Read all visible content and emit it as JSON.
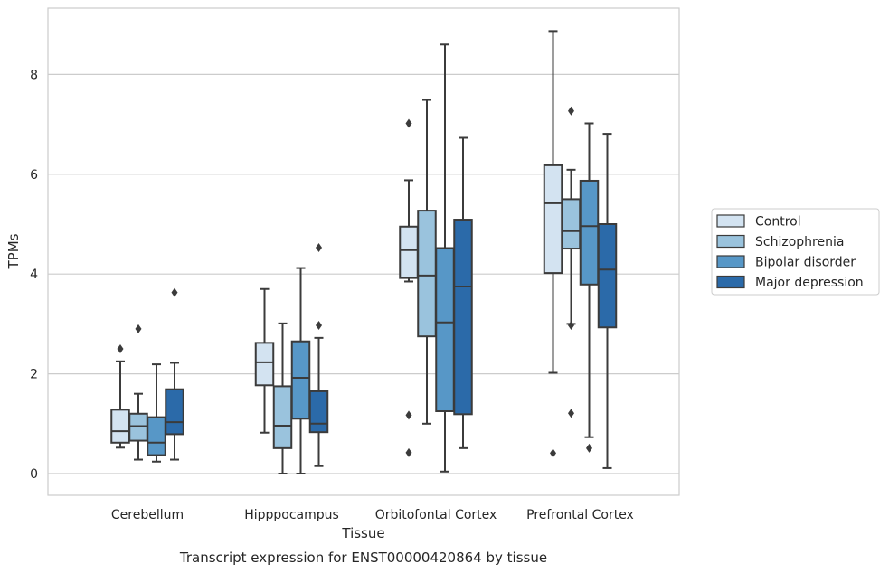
{
  "caption": "Transcript expression for ENST00000420864 by tissue",
  "chart_data": {
    "type": "box",
    "xlabel": "Tissue",
    "ylabel": "TPMs",
    "ylim": [
      -0.4,
      9.3
    ],
    "yticks": [
      0,
      2,
      4,
      6,
      8
    ],
    "grid": "horizontal",
    "legend_position": "right",
    "categories": [
      "Cerebellum",
      "Hipppocampus",
      "Orbitofontal Cortex",
      "Prefrontal Cortex"
    ],
    "series": [
      {
        "name": "Control",
        "color": "#d3e3f1",
        "boxes": [
          {
            "whislo": 0.52,
            "q1": 0.62,
            "med": 0.85,
            "q3": 1.28,
            "whishi": 2.25,
            "fliers": [
              2.5
            ]
          },
          {
            "whislo": 0.82,
            "q1": 1.77,
            "med": 2.23,
            "q3": 2.62,
            "whishi": 3.7,
            "fliers": []
          },
          {
            "whislo": 3.85,
            "q1": 3.92,
            "med": 4.48,
            "q3": 4.95,
            "whishi": 5.88,
            "fliers": [
              7.02,
              1.17,
              0.42
            ]
          },
          {
            "whislo": 2.02,
            "q1": 4.02,
            "med": 5.42,
            "q3": 6.18,
            "whishi": 8.87,
            "fliers": [
              0.41
            ]
          }
        ]
      },
      {
        "name": "Schizophrenia",
        "color": "#9ac3dd",
        "boxes": [
          {
            "whislo": 0.28,
            "q1": 0.66,
            "med": 0.95,
            "q3": 1.2,
            "whishi": 1.6,
            "fliers": [
              2.9
            ]
          },
          {
            "whislo": 0.0,
            "q1": 0.51,
            "med": 0.96,
            "q3": 1.75,
            "whishi": 3.01,
            "fliers": []
          },
          {
            "whislo": 1.0,
            "q1": 2.75,
            "med": 3.97,
            "q3": 5.27,
            "whishi": 7.49,
            "fliers": []
          },
          {
            "whislo": 3.0,
            "q1": 4.51,
            "med": 4.86,
            "q3": 5.5,
            "whishi": 6.09,
            "fliers": [
              7.27,
              2.97,
              1.21
            ]
          }
        ]
      },
      {
        "name": "Bipolar disorder",
        "color": "#5797c7",
        "boxes": [
          {
            "whislo": 0.24,
            "q1": 0.37,
            "med": 0.62,
            "q3": 1.13,
            "whishi": 2.19,
            "fliers": []
          },
          {
            "whislo": 0.0,
            "q1": 1.1,
            "med": 1.92,
            "q3": 2.65,
            "whishi": 4.12,
            "fliers": []
          },
          {
            "whislo": 0.04,
            "q1": 1.25,
            "med": 3.03,
            "q3": 4.52,
            "whishi": 8.6,
            "fliers": []
          },
          {
            "whislo": 0.73,
            "q1": 3.79,
            "med": 4.96,
            "q3": 5.87,
            "whishi": 7.02,
            "fliers": [
              0.51
            ]
          }
        ]
      },
      {
        "name": "Major depression",
        "color": "#2b6aa9",
        "boxes": [
          {
            "whislo": 0.28,
            "q1": 0.79,
            "med": 1.03,
            "q3": 1.69,
            "whishi": 2.22,
            "fliers": [
              3.63
            ]
          },
          {
            "whislo": 0.15,
            "q1": 0.83,
            "med": 1.0,
            "q3": 1.65,
            "whishi": 2.72,
            "fliers": [
              4.53,
              2.97
            ]
          },
          {
            "whislo": 0.51,
            "q1": 1.19,
            "med": 3.75,
            "q3": 5.09,
            "whishi": 6.73,
            "fliers": []
          },
          {
            "whislo": 0.11,
            "q1": 2.93,
            "med": 4.09,
            "q3": 5.0,
            "whishi": 6.81,
            "fliers": []
          }
        ]
      }
    ]
  }
}
